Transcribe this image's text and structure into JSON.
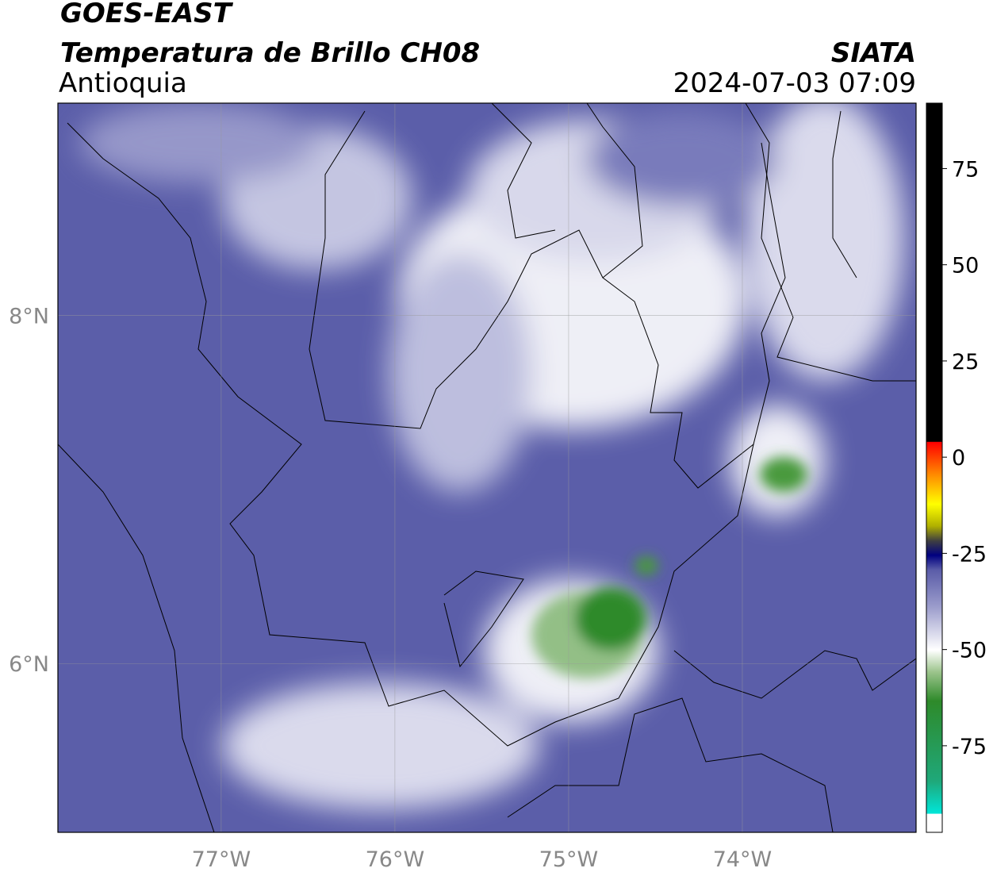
{
  "header": {
    "title": "GOES-EAST",
    "subtitle": "Temperatura de Brillo CH08",
    "region": "Antioquia",
    "source": "SIATA",
    "datetime": "2024-07-03 07:09"
  },
  "map": {
    "lonlim": [
      -77.94,
      -73.0
    ],
    "latlim": [
      5.03,
      9.22
    ],
    "lon_ticks": [
      {
        "value": -77,
        "label": "77°W"
      },
      {
        "value": -76,
        "label": "76°W"
      },
      {
        "value": -75,
        "label": "75°W"
      },
      {
        "value": -74,
        "label": "74°W"
      }
    ],
    "lat_ticks": [
      {
        "value": 8,
        "label": "8°N"
      },
      {
        "value": 6,
        "label": "6°N"
      }
    ]
  },
  "colorbar": {
    "lim": [
      -97.5,
      92
    ],
    "ticks": [
      75,
      50,
      25,
      0,
      -25,
      -50,
      -75
    ]
  }
}
